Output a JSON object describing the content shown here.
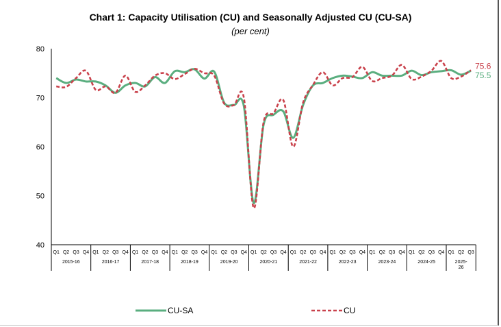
{
  "chart_data": {
    "type": "line",
    "title": "Chart 1: Capacity Utilisation (CU) and Seasonally Adjusted CU (CU-SA)",
    "subtitle": "(per cent)",
    "ylim": [
      40,
      80
    ],
    "yticks": [
      40,
      50,
      60,
      70,
      80
    ],
    "grid": false,
    "legend_placement": "bottom",
    "quarters": [
      "Q1",
      "Q2",
      "Q3",
      "Q4"
    ],
    "years": [
      "2015-16",
      "2016-17",
      "2017-18",
      "2018-19",
      "2019-20",
      "2020-21",
      "2021-22",
      "2022-23",
      "2023-24",
      "2024-25",
      "2025-26"
    ],
    "last_year_quarters": 3,
    "series": [
      {
        "name": "CU-SA",
        "color": "#5aae7f",
        "style": "solid",
        "end_label": "75.5",
        "values": [
          74.0,
          73.0,
          73.7,
          73.3,
          73.3,
          72.5,
          71.0,
          72.5,
          73.0,
          72.3,
          74.2,
          73.0,
          75.4,
          75.2,
          75.8,
          73.9,
          75.3,
          69.0,
          68.5,
          68.3,
          48.5,
          64.5,
          66.5,
          67.2,
          61.8,
          68.5,
          72.5,
          73.0,
          74.0,
          74.5,
          74.3,
          74.0,
          75.2,
          74.5,
          74.5,
          74.5,
          75.5,
          74.6,
          75.2,
          75.4,
          75.6,
          74.7,
          75.5
        ]
      },
      {
        "name": "CU",
        "color": "#c9414b",
        "style": "dashed",
        "end_label": "75.6",
        "values": [
          72.3,
          72.2,
          74.0,
          75.5,
          71.6,
          72.3,
          71.0,
          74.5,
          71.2,
          72.5,
          74.5,
          75.0,
          73.8,
          74.8,
          75.9,
          75.0,
          74.5,
          68.8,
          68.5,
          70.0,
          47.5,
          65.0,
          66.8,
          69.5,
          60.0,
          69.0,
          72.6,
          75.2,
          72.5,
          74.0,
          74.2,
          76.3,
          73.4,
          74.0,
          74.5,
          76.7,
          73.8,
          74.3,
          75.5,
          77.5,
          74.0,
          74.3,
          75.6
        ]
      }
    ]
  }
}
